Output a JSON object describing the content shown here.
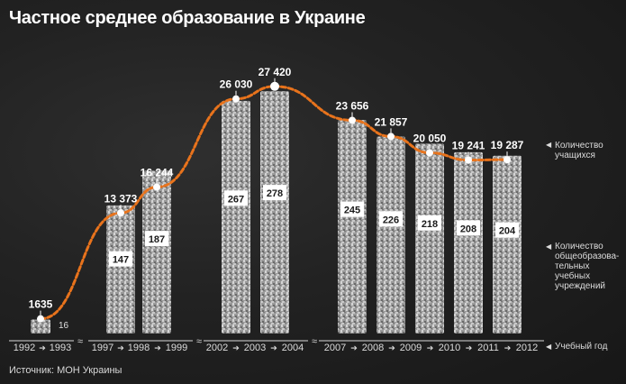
{
  "title": "Частное среднее образование в Украине",
  "source": "Источник: МОН Украины",
  "legend": {
    "students": [
      "Количество",
      "учащихся"
    ],
    "schools": [
      "Количество",
      "общеобразова-",
      "тельных учебных",
      "учреждений"
    ],
    "year": "Учебный год"
  },
  "colors": {
    "line": "#e8731c",
    "bar": "#b8b8b8",
    "label_bg": "#ffffff",
    "label_fg": "#1a1a1a"
  },
  "chart_data": {
    "type": "bar",
    "title": "Частное среднее образование в Украине",
    "categories": [
      "1992–1993",
      "1997–1998",
      "1998–1999",
      "2002–2003",
      "2003–2004",
      "2007–2008",
      "2008–2009",
      "2009–2010",
      "2010–2011",
      "2011–2012"
    ],
    "series": [
      {
        "name": "Количество учащихся",
        "type": "line",
        "values": [
          1635,
          13373,
          16244,
          26030,
          27420,
          23656,
          21857,
          20050,
          19241,
          19287
        ],
        "labels": [
          "1635",
          "13 373",
          "16 244",
          "26 030",
          "27 420",
          "23 656",
          "21 857",
          "20 050",
          "19 241",
          "19 287"
        ]
      },
      {
        "name": "Количество общеобразовательных учебных учреждений",
        "type": "bar",
        "values": [
          16,
          147,
          187,
          267,
          278,
          245,
          226,
          218,
          208,
          204
        ]
      }
    ],
    "year_ticks": [
      "1992",
      "1993",
      "1997",
      "1998",
      "1999",
      "2002",
      "2003",
      "2004",
      "2007",
      "2008",
      "2009",
      "2010",
      "2011",
      "2012"
    ],
    "ylim_students": [
      0,
      30000
    ],
    "ylim_schools": [
      0,
      300
    ],
    "grid": false
  }
}
